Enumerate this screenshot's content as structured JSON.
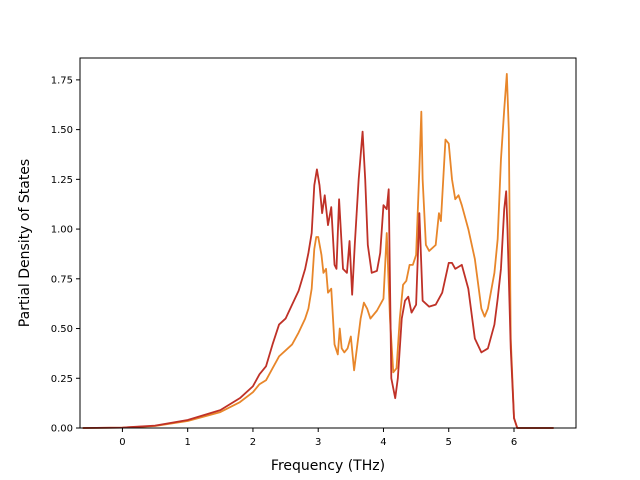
{
  "chart_data": {
    "type": "line",
    "title": "",
    "xlabel": "Frequency (THz)",
    "ylabel": "Partial Density of States",
    "xlim": [
      -0.65,
      6.95
    ],
    "ylim": [
      0.0,
      1.86
    ],
    "xticks": [
      0,
      1,
      2,
      3,
      4,
      5,
      6
    ],
    "yticks": [
      0.0,
      0.25,
      0.5,
      0.75,
      1.0,
      1.25,
      1.5,
      1.75
    ],
    "ytick_labels": [
      "0.00",
      "0.25",
      "0.50",
      "0.75",
      "1.00",
      "1.25",
      "1.50",
      "1.75"
    ],
    "grid": false,
    "legend": "none",
    "series": [
      {
        "color": "#E8862A",
        "points": [
          [
            -0.6,
            0.0
          ],
          [
            0.0,
            0.002
          ],
          [
            0.5,
            0.01
          ],
          [
            1.0,
            0.035
          ],
          [
            1.5,
            0.08
          ],
          [
            1.8,
            0.13
          ],
          [
            2.0,
            0.18
          ],
          [
            2.1,
            0.22
          ],
          [
            2.2,
            0.24
          ],
          [
            2.3,
            0.3
          ],
          [
            2.4,
            0.36
          ],
          [
            2.5,
            0.39
          ],
          [
            2.6,
            0.42
          ],
          [
            2.7,
            0.48
          ],
          [
            2.8,
            0.55
          ],
          [
            2.85,
            0.6
          ],
          [
            2.9,
            0.7
          ],
          [
            2.94,
            0.9
          ],
          [
            2.97,
            0.96
          ],
          [
            3.0,
            0.96
          ],
          [
            3.05,
            0.87
          ],
          [
            3.08,
            0.78
          ],
          [
            3.12,
            0.8
          ],
          [
            3.15,
            0.68
          ],
          [
            3.2,
            0.7
          ],
          [
            3.25,
            0.42
          ],
          [
            3.3,
            0.37
          ],
          [
            3.33,
            0.5
          ],
          [
            3.36,
            0.4
          ],
          [
            3.4,
            0.38
          ],
          [
            3.45,
            0.4
          ],
          [
            3.5,
            0.46
          ],
          [
            3.55,
            0.29
          ],
          [
            3.6,
            0.42
          ],
          [
            3.65,
            0.55
          ],
          [
            3.7,
            0.63
          ],
          [
            3.75,
            0.6
          ],
          [
            3.8,
            0.55
          ],
          [
            3.9,
            0.59
          ],
          [
            4.0,
            0.65
          ],
          [
            4.05,
            0.98
          ],
          [
            4.1,
            0.55
          ],
          [
            4.15,
            0.28
          ],
          [
            4.2,
            0.3
          ],
          [
            4.25,
            0.55
          ],
          [
            4.3,
            0.72
          ],
          [
            4.35,
            0.74
          ],
          [
            4.4,
            0.82
          ],
          [
            4.45,
            0.82
          ],
          [
            4.5,
            0.87
          ],
          [
            4.55,
            1.3
          ],
          [
            4.58,
            1.59
          ],
          [
            4.6,
            1.25
          ],
          [
            4.65,
            0.92
          ],
          [
            4.7,
            0.89
          ],
          [
            4.8,
            0.92
          ],
          [
            4.85,
            1.08
          ],
          [
            4.88,
            1.04
          ],
          [
            4.95,
            1.45
          ],
          [
            5.0,
            1.43
          ],
          [
            5.05,
            1.25
          ],
          [
            5.1,
            1.15
          ],
          [
            5.15,
            1.17
          ],
          [
            5.2,
            1.12
          ],
          [
            5.3,
            1.0
          ],
          [
            5.4,
            0.85
          ],
          [
            5.5,
            0.6
          ],
          [
            5.55,
            0.56
          ],
          [
            5.6,
            0.6
          ],
          [
            5.7,
            0.78
          ],
          [
            5.75,
            0.95
          ],
          [
            5.8,
            1.35
          ],
          [
            5.85,
            1.6
          ],
          [
            5.89,
            1.78
          ],
          [
            5.92,
            1.5
          ],
          [
            5.95,
            0.45
          ],
          [
            6.0,
            0.05
          ],
          [
            6.05,
            0.0
          ],
          [
            6.6,
            0.0
          ]
        ]
      },
      {
        "color": "#BF3127",
        "points": [
          [
            -0.6,
            0.0
          ],
          [
            0.0,
            0.002
          ],
          [
            0.5,
            0.012
          ],
          [
            1.0,
            0.04
          ],
          [
            1.5,
            0.09
          ],
          [
            1.8,
            0.15
          ],
          [
            2.0,
            0.21
          ],
          [
            2.1,
            0.27
          ],
          [
            2.2,
            0.31
          ],
          [
            2.3,
            0.42
          ],
          [
            2.4,
            0.52
          ],
          [
            2.5,
            0.55
          ],
          [
            2.6,
            0.62
          ],
          [
            2.7,
            0.69
          ],
          [
            2.8,
            0.8
          ],
          [
            2.85,
            0.88
          ],
          [
            2.9,
            0.98
          ],
          [
            2.94,
            1.22
          ],
          [
            2.98,
            1.3
          ],
          [
            3.02,
            1.22
          ],
          [
            3.06,
            1.08
          ],
          [
            3.1,
            1.17
          ],
          [
            3.15,
            1.02
          ],
          [
            3.2,
            1.11
          ],
          [
            3.25,
            0.82
          ],
          [
            3.28,
            0.8
          ],
          [
            3.32,
            1.15
          ],
          [
            3.38,
            0.8
          ],
          [
            3.44,
            0.78
          ],
          [
            3.48,
            0.94
          ],
          [
            3.52,
            0.67
          ],
          [
            3.56,
            0.92
          ],
          [
            3.62,
            1.25
          ],
          [
            3.68,
            1.49
          ],
          [
            3.72,
            1.25
          ],
          [
            3.76,
            0.92
          ],
          [
            3.82,
            0.78
          ],
          [
            3.9,
            0.79
          ],
          [
            3.95,
            0.88
          ],
          [
            4.0,
            1.12
          ],
          [
            4.05,
            1.1
          ],
          [
            4.08,
            1.2
          ],
          [
            4.12,
            0.25
          ],
          [
            4.18,
            0.15
          ],
          [
            4.22,
            0.25
          ],
          [
            4.28,
            0.55
          ],
          [
            4.33,
            0.64
          ],
          [
            4.38,
            0.66
          ],
          [
            4.43,
            0.58
          ],
          [
            4.5,
            0.62
          ],
          [
            4.55,
            1.08
          ],
          [
            4.6,
            0.64
          ],
          [
            4.7,
            0.61
          ],
          [
            4.8,
            0.62
          ],
          [
            4.9,
            0.68
          ],
          [
            5.0,
            0.83
          ],
          [
            5.05,
            0.83
          ],
          [
            5.1,
            0.8
          ],
          [
            5.2,
            0.82
          ],
          [
            5.3,
            0.7
          ],
          [
            5.4,
            0.45
          ],
          [
            5.5,
            0.38
          ],
          [
            5.6,
            0.4
          ],
          [
            5.7,
            0.52
          ],
          [
            5.75,
            0.65
          ],
          [
            5.8,
            0.8
          ],
          [
            5.85,
            1.1
          ],
          [
            5.88,
            1.19
          ],
          [
            5.9,
            1.0
          ],
          [
            5.95,
            0.4
          ],
          [
            6.0,
            0.05
          ],
          [
            6.05,
            0.0
          ],
          [
            6.6,
            0.0
          ]
        ]
      }
    ]
  }
}
